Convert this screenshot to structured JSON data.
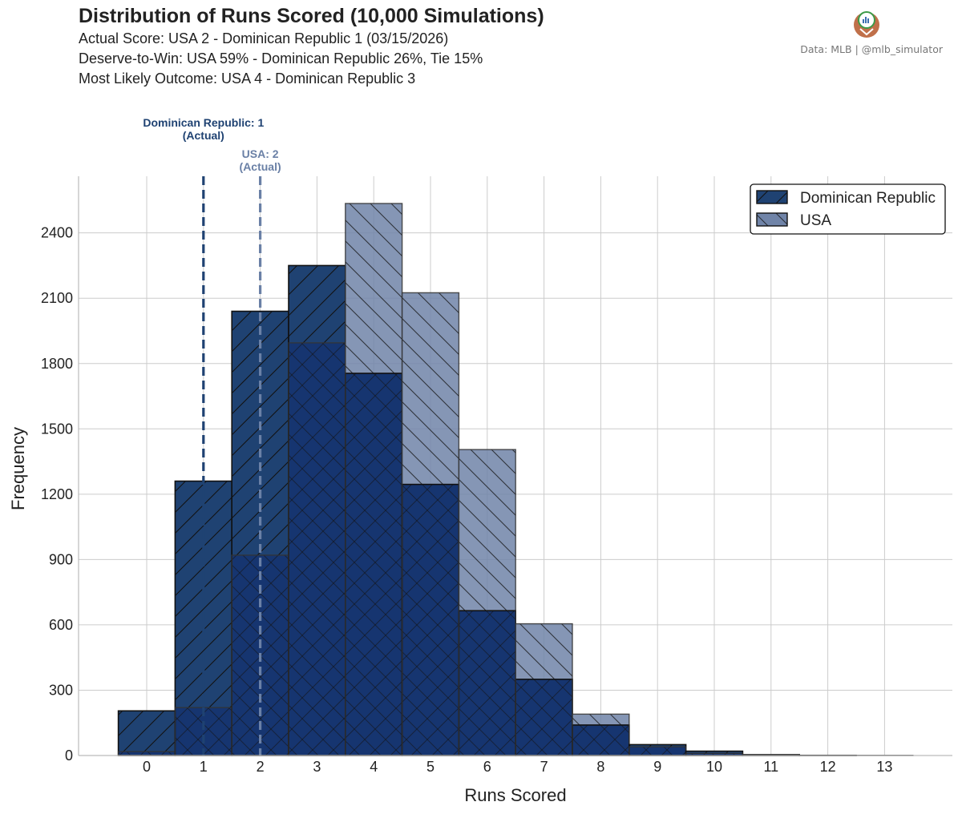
{
  "header": {
    "title": "Distribution of Runs Scored (10,000 Simulations)",
    "line1": "Actual Score: USA 2 - Dominican Republic 1  (03/15/2026)",
    "line2": "Deserve-to-Win: USA 59% - Dominican Republic 26%, Tie 15%",
    "line3": "Most Likely Outcome: USA 4 - Dominican Republic 3",
    "credit": "Data: MLB  |  @mlb_simulator"
  },
  "colors": {
    "dominican": "#1f4272",
    "usa": "#7084a8",
    "overlap": "#163570",
    "usa_line": "#6a80a6",
    "grid": "#cccccc",
    "logo": "#c0704a"
  },
  "chart_data": {
    "type": "bar",
    "xlabel": "Runs Scored",
    "ylabel": "Frequency",
    "categories": [
      "0",
      "1",
      "2",
      "3",
      "4",
      "5",
      "6",
      "7",
      "8",
      "9",
      "10",
      "11",
      "12",
      "13"
    ],
    "yticks": [
      0,
      300,
      600,
      900,
      1200,
      1500,
      1800,
      2100,
      2400
    ],
    "ylim": [
      0,
      2660
    ],
    "grid": true,
    "legend_position": "top-right",
    "series": [
      {
        "name": "Dominican Republic",
        "hatch": "forward",
        "values": [
          205,
          1260,
          2040,
          2250,
          1755,
          1245,
          665,
          350,
          140,
          50,
          20,
          4,
          1,
          0
        ]
      },
      {
        "name": "USA",
        "hatch": "backward",
        "values": [
          18,
          220,
          920,
          1895,
          2535,
          2125,
          1405,
          605,
          190,
          40,
          10,
          3,
          1,
          1
        ]
      }
    ],
    "annotations": [
      {
        "x": 1,
        "series": "Dominican Republic",
        "line1": "Dominican Republic: 1",
        "line2": "(Actual)"
      },
      {
        "x": 2,
        "series": "USA",
        "line1": "USA: 2",
        "line2": "(Actual)"
      }
    ]
  }
}
